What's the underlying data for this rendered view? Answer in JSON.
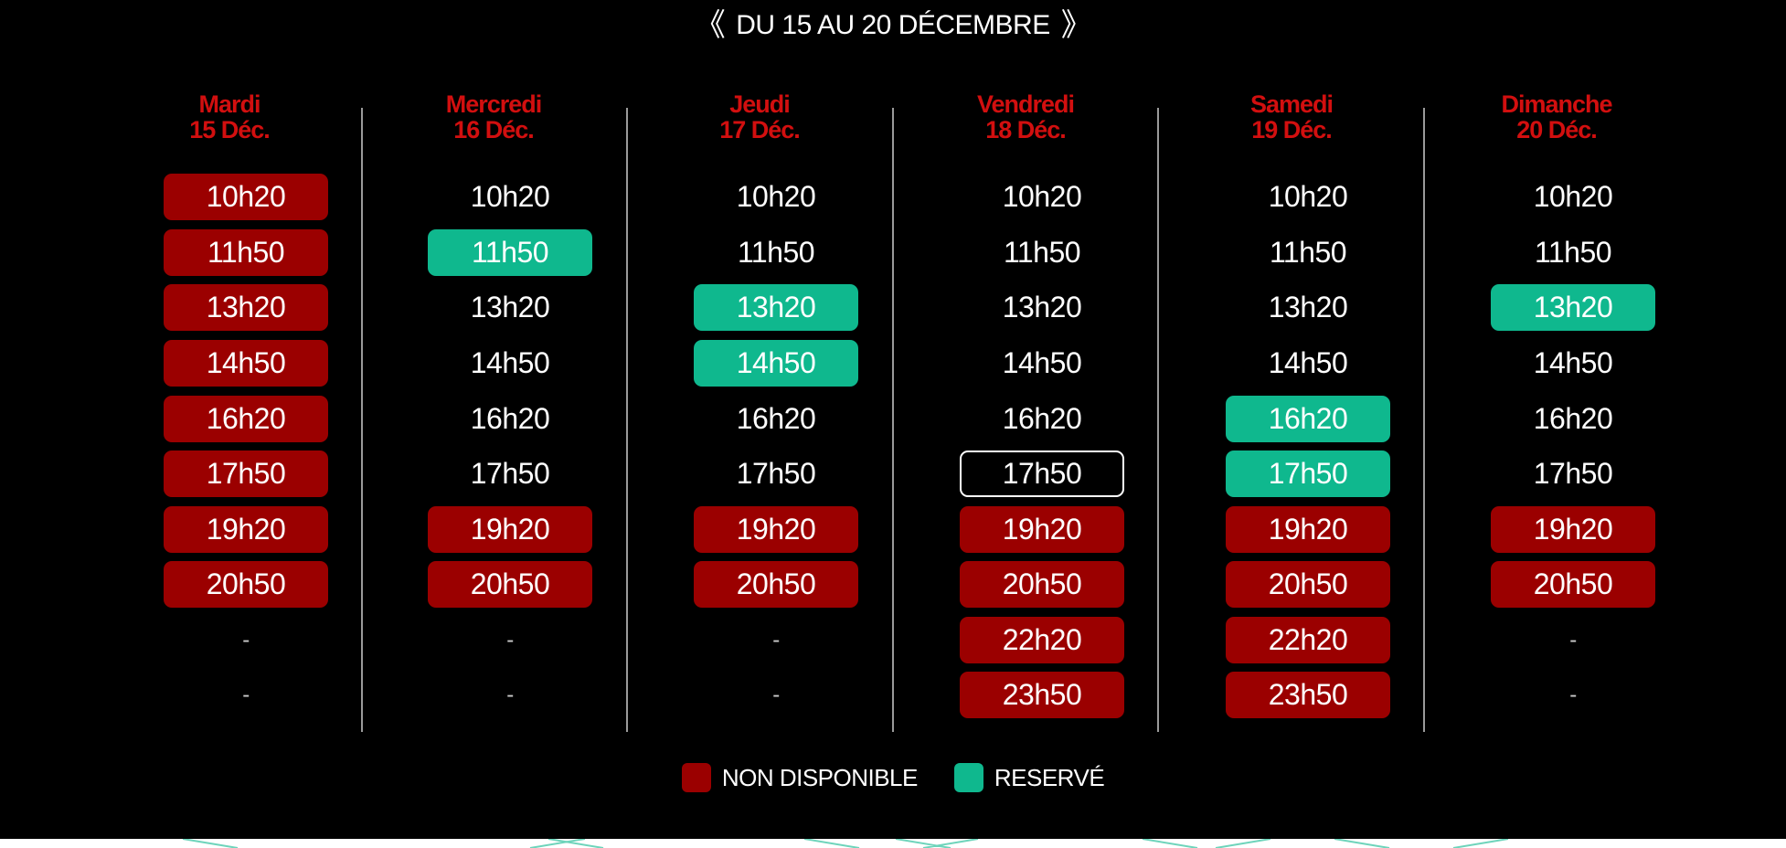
{
  "header": {
    "prev_arrow": "《",
    "week_label": "DU 15 AU 20 DÉCEMBRE",
    "next_arrow": "》"
  },
  "colors": {
    "unavailable": "#9b0000",
    "reserved": "#0fb88e",
    "day_header": "#d20f0f"
  },
  "days": [
    {
      "name": "Mardi",
      "date": "15 Déc.",
      "slots": [
        {
          "time": "10h20",
          "status": "unavailable"
        },
        {
          "time": "11h50",
          "status": "unavailable"
        },
        {
          "time": "13h20",
          "status": "unavailable"
        },
        {
          "time": "14h50",
          "status": "unavailable"
        },
        {
          "time": "16h20",
          "status": "unavailable"
        },
        {
          "time": "17h50",
          "status": "unavailable"
        },
        {
          "time": "19h20",
          "status": "unavailable"
        },
        {
          "time": "20h50",
          "status": "unavailable"
        },
        {
          "time": "-",
          "status": "empty"
        },
        {
          "time": "-",
          "status": "empty"
        }
      ]
    },
    {
      "name": "Mercredi",
      "date": "16 Déc.",
      "slots": [
        {
          "time": "10h20",
          "status": "available"
        },
        {
          "time": "11h50",
          "status": "reserved"
        },
        {
          "time": "13h20",
          "status": "available"
        },
        {
          "time": "14h50",
          "status": "available"
        },
        {
          "time": "16h20",
          "status": "available"
        },
        {
          "time": "17h50",
          "status": "available"
        },
        {
          "time": "19h20",
          "status": "unavailable"
        },
        {
          "time": "20h50",
          "status": "unavailable"
        },
        {
          "time": "-",
          "status": "empty"
        },
        {
          "time": "-",
          "status": "empty"
        }
      ]
    },
    {
      "name": "Jeudi",
      "date": "17 Déc.",
      "slots": [
        {
          "time": "10h20",
          "status": "available"
        },
        {
          "time": "11h50",
          "status": "available"
        },
        {
          "time": "13h20",
          "status": "reserved"
        },
        {
          "time": "14h50",
          "status": "reserved"
        },
        {
          "time": "16h20",
          "status": "available"
        },
        {
          "time": "17h50",
          "status": "available"
        },
        {
          "time": "19h20",
          "status": "unavailable"
        },
        {
          "time": "20h50",
          "status": "unavailable"
        },
        {
          "time": "-",
          "status": "empty"
        },
        {
          "time": "-",
          "status": "empty"
        }
      ]
    },
    {
      "name": "Vendredi",
      "date": "18 Déc.",
      "slots": [
        {
          "time": "10h20",
          "status": "available"
        },
        {
          "time": "11h50",
          "status": "available"
        },
        {
          "time": "13h20",
          "status": "available"
        },
        {
          "time": "14h50",
          "status": "available"
        },
        {
          "time": "16h20",
          "status": "available"
        },
        {
          "time": "17h50",
          "status": "selected"
        },
        {
          "time": "19h20",
          "status": "unavailable"
        },
        {
          "time": "20h50",
          "status": "unavailable"
        },
        {
          "time": "22h20",
          "status": "unavailable"
        },
        {
          "time": "23h50",
          "status": "unavailable"
        }
      ]
    },
    {
      "name": "Samedi",
      "date": "19 Déc.",
      "slots": [
        {
          "time": "10h20",
          "status": "available"
        },
        {
          "time": "11h50",
          "status": "available"
        },
        {
          "time": "13h20",
          "status": "available"
        },
        {
          "time": "14h50",
          "status": "available"
        },
        {
          "time": "16h20",
          "status": "reserved"
        },
        {
          "time": "17h50",
          "status": "reserved"
        },
        {
          "time": "19h20",
          "status": "unavailable"
        },
        {
          "time": "20h50",
          "status": "unavailable"
        },
        {
          "time": "22h20",
          "status": "unavailable"
        },
        {
          "time": "23h50",
          "status": "unavailable"
        }
      ]
    },
    {
      "name": "Dimanche",
      "date": "20 Déc.",
      "slots": [
        {
          "time": "10h20",
          "status": "available"
        },
        {
          "time": "11h50",
          "status": "available"
        },
        {
          "time": "13h20",
          "status": "reserved"
        },
        {
          "time": "14h50",
          "status": "available"
        },
        {
          "time": "16h20",
          "status": "available"
        },
        {
          "time": "17h50",
          "status": "available"
        },
        {
          "time": "19h20",
          "status": "unavailable"
        },
        {
          "time": "20h50",
          "status": "unavailable"
        },
        {
          "time": "-",
          "status": "empty"
        },
        {
          "time": "-",
          "status": "empty"
        }
      ]
    }
  ],
  "legend": {
    "unavailable_label": "NON DISPONIBLE",
    "reserved_label": "RESERVÉ"
  }
}
